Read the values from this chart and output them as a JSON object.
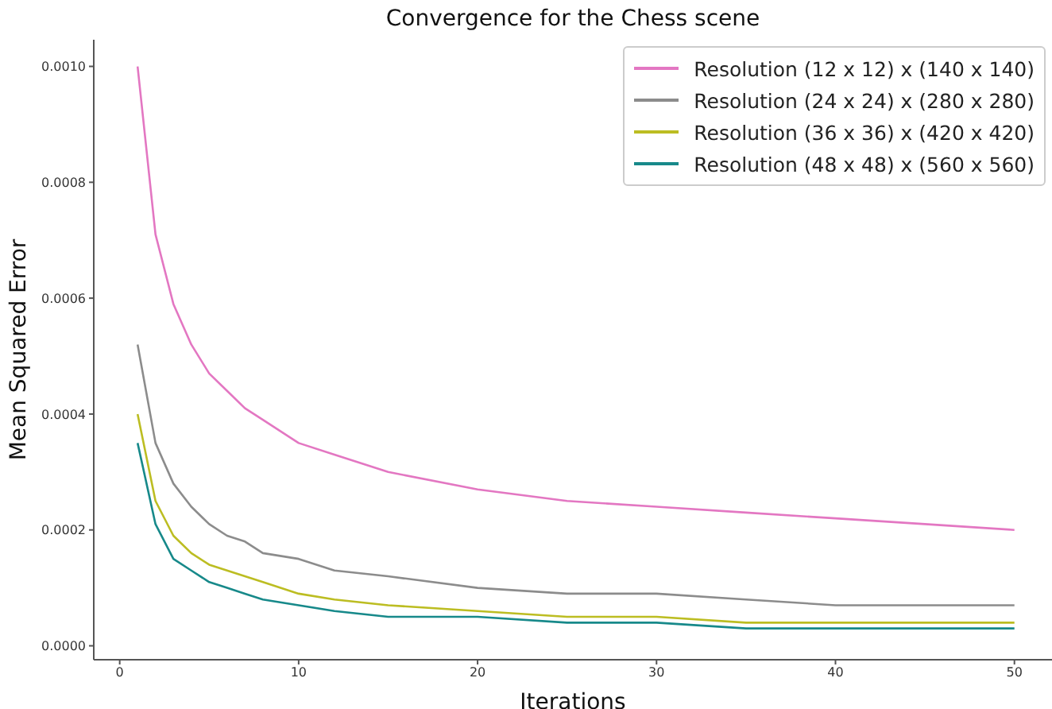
{
  "chart_data": {
    "type": "line",
    "title": "Convergence for the Chess scene",
    "xlabel": "Iterations",
    "ylabel": "Mean Squared Error",
    "x": [
      1,
      2,
      3,
      4,
      5,
      6,
      7,
      8,
      10,
      12,
      15,
      20,
      25,
      30,
      35,
      40,
      45,
      50
    ],
    "series": [
      {
        "name": "Resolution (12 x 12) x (140 x 140)",
        "color": "#e377c2",
        "values": [
          0.001,
          0.00071,
          0.00059,
          0.00052,
          0.00047,
          0.00044,
          0.00041,
          0.00039,
          0.00035,
          0.00033,
          0.0003,
          0.00027,
          0.00025,
          0.00024,
          0.00023,
          0.00022,
          0.00021,
          0.0002
        ]
      },
      {
        "name": "Resolution (24 x 24) x (280 x 280)",
        "color": "#8c8c8c",
        "values": [
          0.00052,
          0.00035,
          0.00028,
          0.00024,
          0.00021,
          0.00019,
          0.00018,
          0.00016,
          0.00015,
          0.00013,
          0.00012,
          0.0001,
          9e-05,
          9e-05,
          8e-05,
          7e-05,
          7e-05,
          7e-05
        ]
      },
      {
        "name": "Resolution (36 x 36) x (420 x 420)",
        "color": "#bcbd22",
        "values": [
          0.0004,
          0.00025,
          0.00019,
          0.00016,
          0.00014,
          0.00013,
          0.00012,
          0.00011,
          9e-05,
          8e-05,
          7e-05,
          6e-05,
          5e-05,
          5e-05,
          4e-05,
          4e-05,
          4e-05,
          4e-05
        ]
      },
      {
        "name": "Resolution (48 x 48) x (560 x 560)",
        "color": "#17898a",
        "values": [
          0.00035,
          0.00021,
          0.00015,
          0.00013,
          0.00011,
          0.0001,
          9e-05,
          8e-05,
          7e-05,
          6e-05,
          5e-05,
          5e-05,
          4e-05,
          4e-05,
          3e-05,
          3e-05,
          3e-05,
          3e-05
        ]
      }
    ],
    "xlim": [
      -1.45,
      52.1
    ],
    "xticks": [
      0,
      10,
      20,
      30,
      40,
      50
    ],
    "ylim": [
      -2.4e-05,
      0.001046
    ],
    "yticks": [
      {
        "value": 0,
        "label": "0.0000"
      },
      {
        "value": 0.0002,
        "label": "0.0002"
      },
      {
        "value": 0.0004,
        "label": "0.0004"
      },
      {
        "value": 0.0006,
        "label": "0.0006"
      },
      {
        "value": 0.0008,
        "label": "0.0008"
      },
      {
        "value": 0.001,
        "label": "0.0010"
      }
    ],
    "legend": "top right",
    "grid": false,
    "marker": "none",
    "line_style": "solid"
  }
}
